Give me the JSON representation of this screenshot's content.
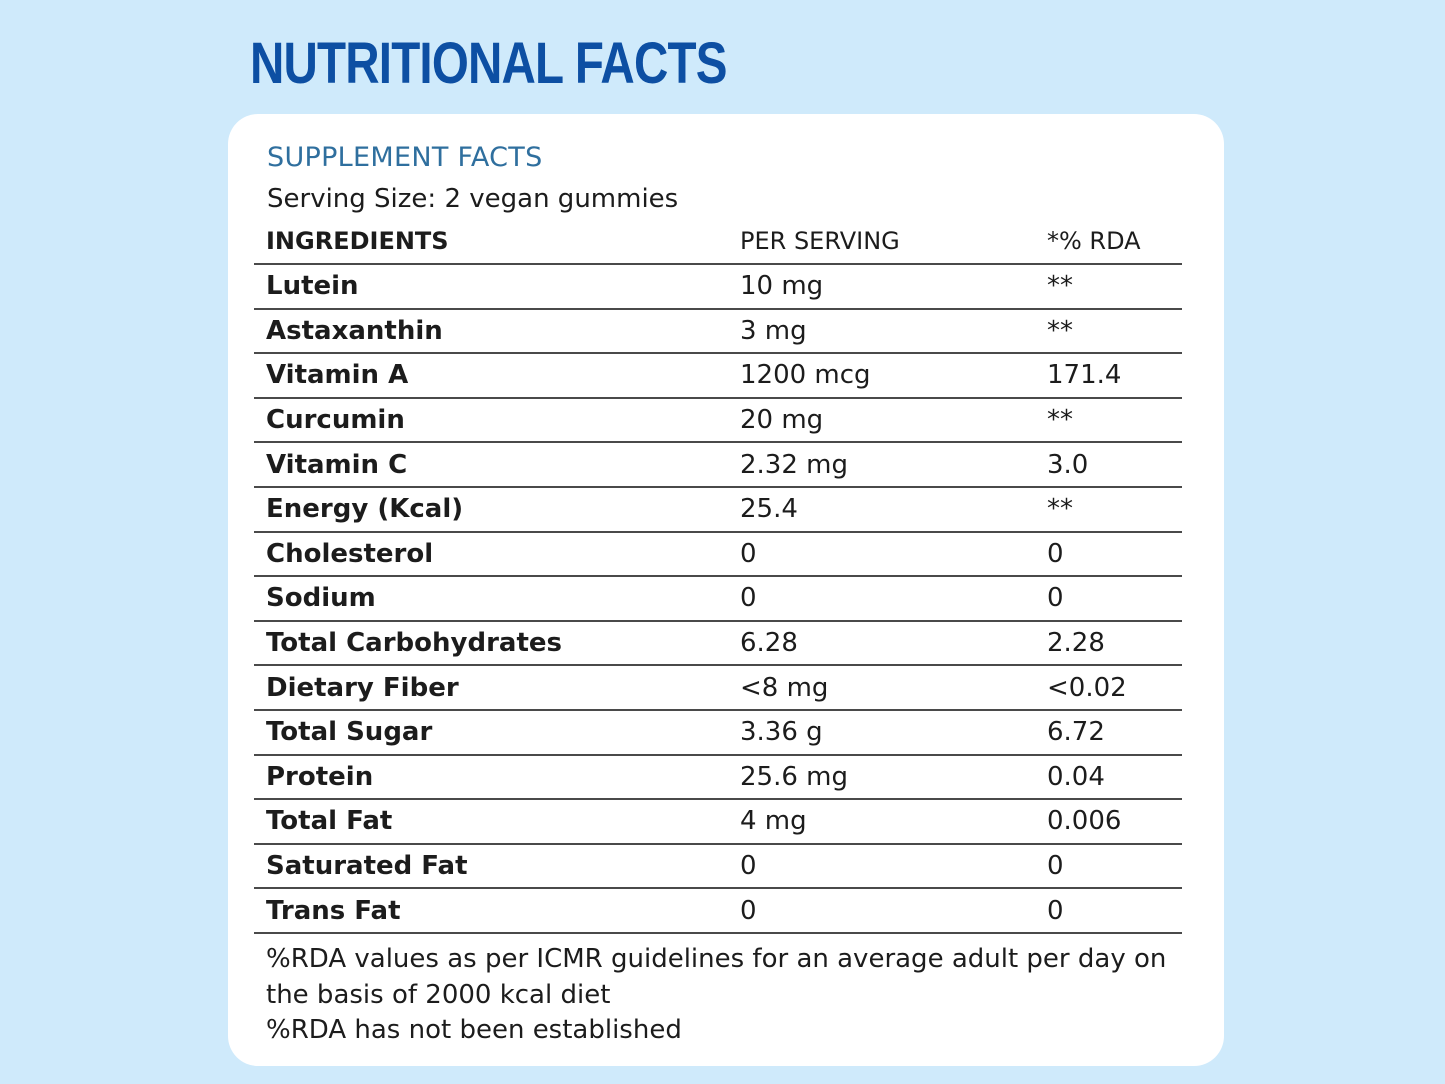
{
  "page": {
    "heading": "NUTRITIONAL FACTS"
  },
  "card": {
    "title": "SUPPLEMENT FACTS",
    "serving_size": "Serving Size: 2 vegan gummies",
    "columns": {
      "ingredients": "INGREDIENTS",
      "per_serving": "PER SERVING",
      "rda": "*% RDA"
    },
    "rows": [
      {
        "name": "Lutein",
        "per_serving": "10 mg",
        "rda": "**"
      },
      {
        "name": "Astaxanthin",
        "per_serving": "3 mg",
        "rda": "**"
      },
      {
        "name": "Vitamin A",
        "per_serving": "1200 mcg",
        "rda": "171.4"
      },
      {
        "name": "Curcumin",
        "per_serving": "20 mg",
        "rda": "**"
      },
      {
        "name": "Vitamin C",
        "per_serving": "2.32 mg",
        "rda": "3.0"
      },
      {
        "name": "Energy (Kcal)",
        "per_serving": "25.4",
        "rda": "**"
      },
      {
        "name": "Cholesterol",
        "per_serving": "0",
        "rda": "0"
      },
      {
        "name": "Sodium",
        "per_serving": "0",
        "rda": "0"
      },
      {
        "name": "Total Carbohydrates",
        "per_serving": "6.28",
        "rda": "2.28"
      },
      {
        "name": "Dietary Fiber",
        "per_serving": "<8 mg",
        "rda": "<0.02"
      },
      {
        "name": "Total Sugar",
        "per_serving": "3.36 g",
        "rda": "6.72"
      },
      {
        "name": "Protein",
        "per_serving": "25.6 mg",
        "rda": "0.04"
      },
      {
        "name": "Total Fat",
        "per_serving": "4 mg",
        "rda": "0.006"
      },
      {
        "name": "Saturated Fat",
        "per_serving": "0",
        "rda": "0"
      },
      {
        "name": "Trans Fat",
        "per_serving": "0",
        "rda": "0"
      }
    ],
    "notes": [
      "%RDA values as per ICMR guidelines for an average adult per day on the basis of 2000 kcal diet",
      "%RDA has not been established"
    ]
  },
  "colors": {
    "background": "#cfeafb",
    "heading": "#0d4fa3",
    "subtitle": "#2f6f9e",
    "card": "#ffffff",
    "text": "#1c1c1c"
  }
}
